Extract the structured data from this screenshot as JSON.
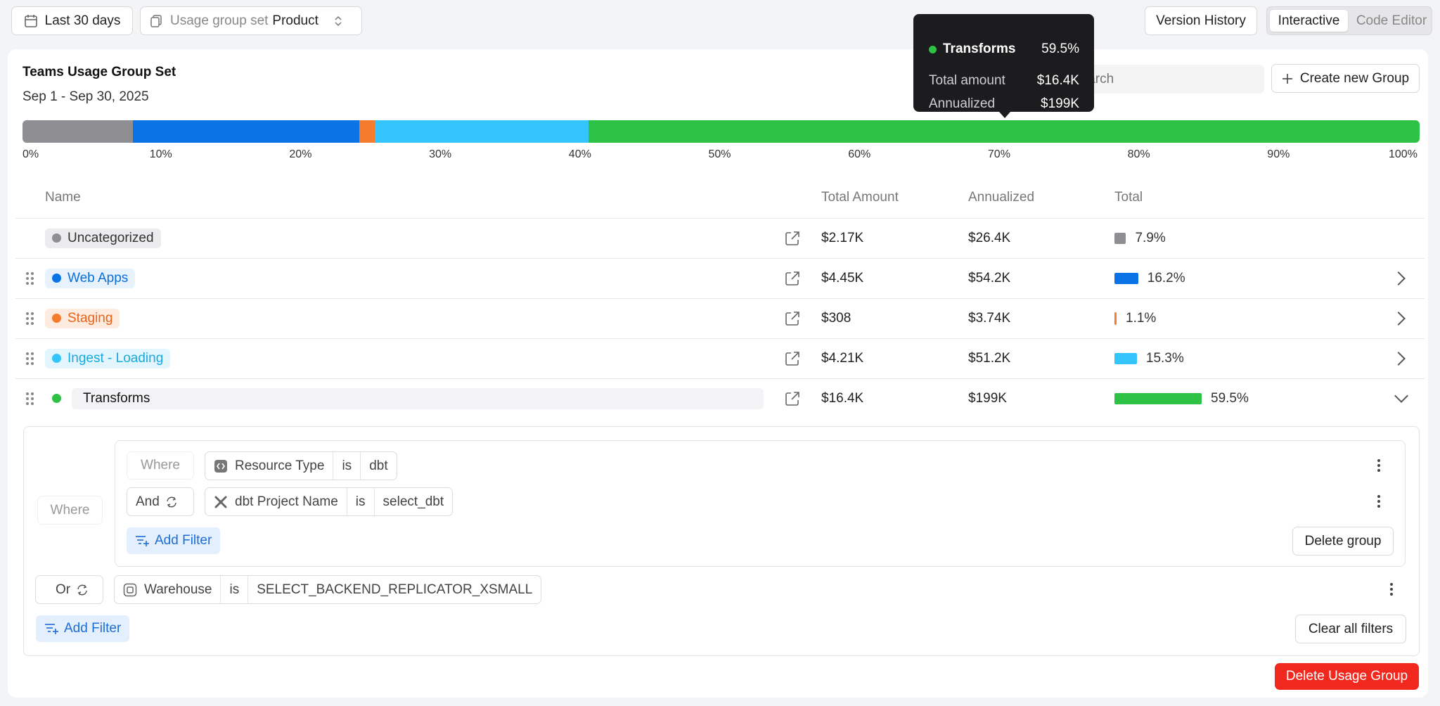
{
  "toolbar": {
    "date_range": "Last 30 days",
    "group_set_prefix": "Usage group set",
    "group_set_value": "Product",
    "version_history": "Version History",
    "mode_interactive": "Interactive",
    "mode_code_editor": "Code Editor"
  },
  "card": {
    "title": "Teams Usage Group Set",
    "date": "Sep 1 - Sep 30, 2025",
    "search_placeholder": "Search",
    "create_group": "Create new Group"
  },
  "tooltip": {
    "name": "Transforms",
    "percent": "59.5%",
    "total_label": "Total amount",
    "total_value": "$16.4K",
    "annualized_label": "Annualized",
    "annualized_value": "$199K"
  },
  "chart_data": {
    "type": "bar",
    "orientation": "horizontal-stacked",
    "ticks": [
      "0%",
      "10%",
      "20%",
      "30%",
      "40%",
      "50%",
      "60%",
      "70%",
      "80%",
      "90%",
      "100%"
    ],
    "series": [
      {
        "name": "Uncategorized",
        "value": 7.9,
        "color": "#8e8e93"
      },
      {
        "name": "Web Apps",
        "value": 16.2,
        "color": "#0a74e6"
      },
      {
        "name": "Staging",
        "value": 1.1,
        "color": "#f57c2c"
      },
      {
        "name": "Ingest - Loading",
        "value": 15.3,
        "color": "#33c5fb"
      },
      {
        "name": "Transforms",
        "value": 59.5,
        "color": "#2dc146"
      }
    ]
  },
  "table": {
    "headers": {
      "name": "Name",
      "total_amount": "Total Amount",
      "annualized": "Annualized",
      "total": "Total"
    },
    "rows": [
      {
        "name": "Uncategorized",
        "total_amount": "$2.17K",
        "annualized": "$26.4K",
        "pct": "7.9%",
        "pct_value": 7.9,
        "color": "#8e8e93",
        "text_color": "#333333",
        "bg": "#ececee"
      },
      {
        "name": "Web Apps",
        "total_amount": "$4.45K",
        "annualized": "$54.2K",
        "pct": "16.2%",
        "pct_value": 16.2,
        "color": "#0a74e6",
        "text_color": "#0a6fd8",
        "bg": "#e8f2fd"
      },
      {
        "name": "Staging",
        "total_amount": "$308",
        "annualized": "$3.74K",
        "pct": "1.1%",
        "pct_value": 1.1,
        "color": "#f57c2c",
        "text_color": "#e8631a",
        "bg": "#fdebdf"
      },
      {
        "name": "Ingest - Loading",
        "total_amount": "$4.21K",
        "annualized": "$51.2K",
        "pct": "15.3%",
        "pct_value": 15.3,
        "color": "#33c5fb",
        "text_color": "#18a9e0",
        "bg": "#e3f6fe"
      },
      {
        "name": "Transforms",
        "total_amount": "$16.4K",
        "annualized": "$199K",
        "pct": "59.5%",
        "pct_value": 59.5,
        "color": "#2dc146",
        "text_color": "#111111",
        "bg": "#f3f3f5"
      }
    ]
  },
  "filters": {
    "where": "Where",
    "inner_where": "Where",
    "and": "And",
    "or": "Or",
    "is": "is",
    "f1_field": "Resource Type",
    "f1_value": "dbt",
    "f2_field": "dbt Project Name",
    "f2_value": "select_dbt",
    "f3_field": "Warehouse",
    "f3_value": "SELECT_BACKEND_REPLICATOR_XSMALL",
    "add_filter": "Add Filter",
    "delete_group": "Delete group",
    "clear_all": "Clear all filters",
    "delete_usage_group": "Delete Usage Group"
  }
}
